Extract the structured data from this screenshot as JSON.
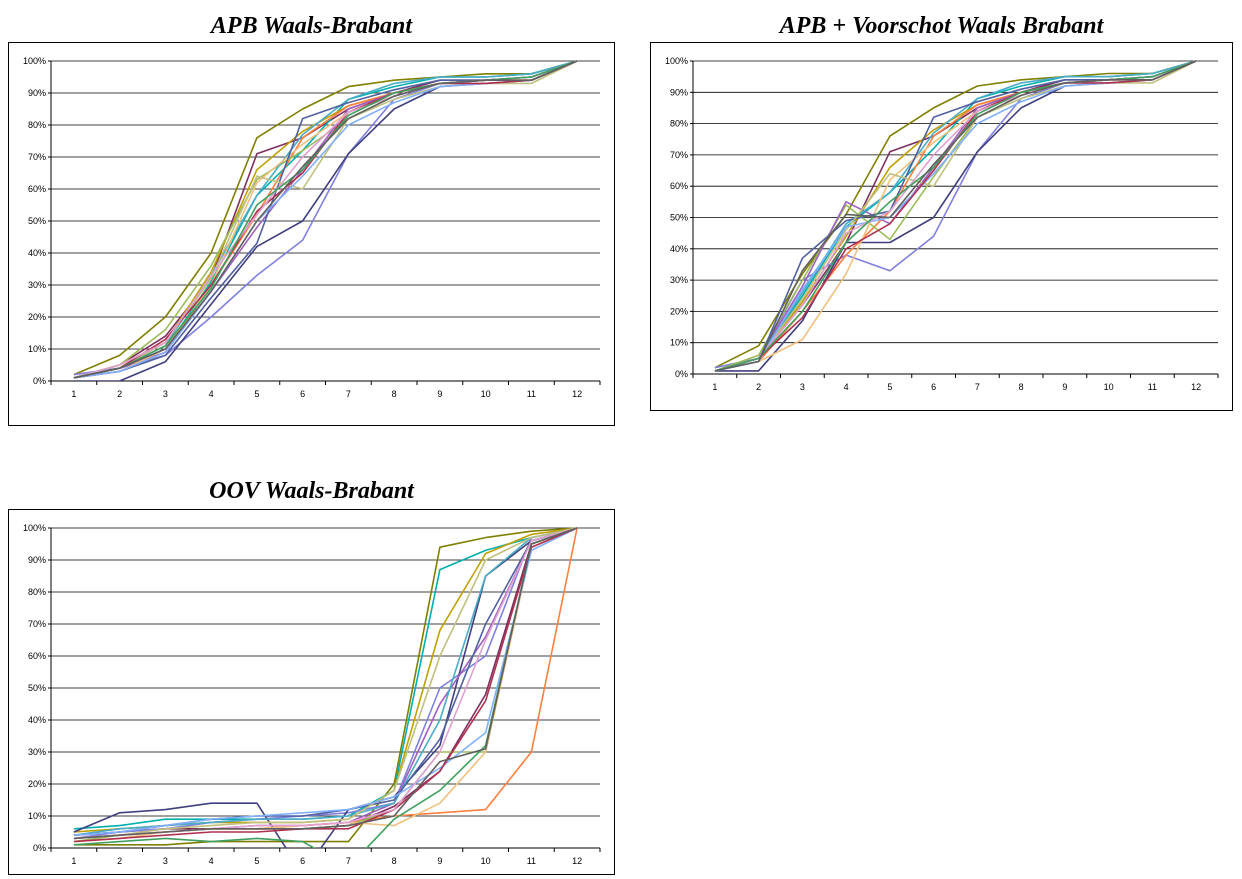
{
  "palette": [
    "#7f7f00",
    "#7f2f5f",
    "#00b0b0",
    "#c0a000",
    "#8080e0",
    "#40407f",
    "#ff8040",
    "#9bbb59",
    "#a060c0",
    "#4bacc6",
    "#f0c080",
    "#5060a0",
    "#c0c080",
    "#80b0ff",
    "#b03050",
    "#e0a0d0",
    "#40a060",
    "#606060"
  ],
  "charts": [
    {
      "title": "APB Waals-Brabant",
      "chart_data": {
        "type": "line",
        "title": "APB Waals-Brabant",
        "xlabel": "",
        "ylabel": "",
        "categories": [
          "1",
          "2",
          "3",
          "4",
          "5",
          "6",
          "7",
          "8",
          "9",
          "10",
          "11",
          "12"
        ],
        "y_ticks": [
          "0%",
          "10%",
          "20%",
          "30%",
          "40%",
          "50%",
          "60%",
          "70%",
          "80%",
          "90%",
          "100%"
        ],
        "ylim": [
          0,
          100
        ],
        "grid": true,
        "legend": "none",
        "series": [
          {
            "values": [
              2,
              8,
              20,
              40,
              76,
              85,
              92,
              94,
              95,
              96,
              96,
              100
            ],
            "color": "#7f7f00"
          },
          {
            "values": [
              1,
              5,
              14,
              32,
              71,
              76,
              85,
              90,
              94,
              94,
              95,
              100
            ],
            "color": "#7f2f5f"
          },
          {
            "values": [
              1,
              4,
              10,
              31,
              58,
              72,
              88,
              92,
              95,
              95,
              96,
              100
            ],
            "color": "#00b0b0"
          },
          {
            "values": [
              1,
              5,
              12,
              34,
              66,
              78,
              86,
              90,
              93,
              94,
              94,
              100
            ],
            "color": "#c0a000"
          },
          {
            "values": [
              2,
              4,
              8,
              20,
              33,
              44,
              71,
              88,
              93,
              94,
              95,
              100
            ],
            "color": "#8080e0"
          },
          {
            "values": [
              0,
              0,
              6,
              24,
              42,
              50,
              71,
              85,
              92,
              93,
              94,
              100
            ],
            "color": "#40407f"
          },
          {
            "values": [
              1,
              3,
              9,
              30,
              52,
              76,
              86,
              90,
              93,
              94,
              94,
              100
            ],
            "color": "#ff8040"
          },
          {
            "values": [
              1,
              5,
              16,
              36,
              63,
              72,
              82,
              89,
              93,
              94,
              95,
              100
            ],
            "color": "#9bbb59"
          },
          {
            "values": [
              1,
              4,
              9,
              28,
              48,
              66,
              85,
              90,
              93,
              94,
              95,
              100
            ],
            "color": "#a060c0"
          },
          {
            "values": [
              1,
              4,
              11,
              33,
              58,
              77,
              88,
              93,
              95,
              95,
              96,
              100
            ],
            "color": "#4bacc6"
          },
          {
            "values": [
              1,
              3,
              10,
              30,
              62,
              74,
              84,
              89,
              93,
              94,
              94,
              100
            ],
            "color": "#f0c080"
          },
          {
            "values": [
              1,
              3,
              8,
              26,
              43,
              82,
              87,
              91,
              94,
              94,
              95,
              100
            ],
            "color": "#5060a0"
          },
          {
            "values": [
              1,
              4,
              12,
              32,
              64,
              60,
              82,
              88,
              92,
              93,
              93,
              100
            ],
            "color": "#c0c080"
          },
          {
            "values": [
              1,
              3,
              9,
              28,
              50,
              64,
              80,
              87,
              92,
              93,
              94,
              100
            ],
            "color": "#80b0ff"
          },
          {
            "values": [
              1,
              4,
              13,
              30,
              53,
              65,
              84,
              90,
              93,
              93,
              94,
              100
            ],
            "color": "#b03050"
          },
          {
            "values": [
              1,
              5,
              12,
              33,
              52,
              70,
              84,
              89,
              93,
              94,
              95,
              100
            ],
            "color": "#e0a0d0"
          },
          {
            "values": [
              1,
              4,
              11,
              29,
              55,
              66,
              83,
              90,
              93,
              94,
              95,
              100
            ],
            "color": "#40a060"
          },
          {
            "values": [
              1,
              4,
              10,
              28,
              50,
              67,
              82,
              89,
              93,
              94,
              94,
              100
            ],
            "color": "#606060"
          }
        ]
      }
    },
    {
      "title": "APB + Voorschot Waals Brabant",
      "chart_data": {
        "type": "line",
        "title": "APB + Voorschot Waals Brabant",
        "xlabel": "",
        "ylabel": "",
        "categories": [
          "1",
          "2",
          "3",
          "4",
          "5",
          "6",
          "7",
          "8",
          "9",
          "10",
          "11",
          "12"
        ],
        "y_ticks": [
          "0%",
          "10%",
          "20%",
          "30%",
          "40%",
          "50%",
          "60%",
          "70%",
          "80%",
          "90%",
          "100%"
        ],
        "ylim": [
          0,
          100
        ],
        "grid": true,
        "legend": "none",
        "series": [
          {
            "values": [
              2,
              9,
              32,
              51,
              76,
              85,
              92,
              94,
              95,
              96,
              96,
              100
            ],
            "color": "#7f7f00"
          },
          {
            "values": [
              1,
              5,
              22,
              42,
              71,
              76,
              85,
              90,
              94,
              94,
              95,
              100
            ],
            "color": "#7f2f5f"
          },
          {
            "values": [
              1,
              5,
              25,
              47,
              58,
              72,
              88,
              92,
              95,
              95,
              96,
              100
            ],
            "color": "#00b0b0"
          },
          {
            "values": [
              1,
              5,
              23,
              44,
              66,
              78,
              86,
              90,
              93,
              94,
              94,
              100
            ],
            "color": "#c0a000"
          },
          {
            "values": [
              2,
              5,
              30,
              38,
              33,
              44,
              71,
              88,
              93,
              94,
              95,
              100
            ],
            "color": "#8080e0"
          },
          {
            "values": [
              1,
              1,
              17,
              42,
              42,
              50,
              71,
              85,
              92,
              93,
              94,
              100
            ],
            "color": "#40407f"
          },
          {
            "values": [
              1,
              4,
              20,
              38,
              52,
              76,
              86,
              90,
              93,
              94,
              94,
              100
            ],
            "color": "#ff8040"
          },
          {
            "values": [
              1,
              6,
              30,
              54,
              43,
              63,
              82,
              89,
              93,
              94,
              95,
              100
            ],
            "color": "#9bbb59"
          },
          {
            "values": [
              1,
              5,
              28,
              55,
              48,
              66,
              85,
              90,
              93,
              94,
              95,
              100
            ],
            "color": "#a060c0"
          },
          {
            "values": [
              1,
              5,
              26,
              48,
              58,
              77,
              88,
              93,
              95,
              95,
              96,
              100
            ],
            "color": "#4bacc6"
          },
          {
            "values": [
              1,
              4,
              11,
              32,
              62,
              74,
              84,
              89,
              93,
              94,
              94,
              100
            ],
            "color": "#f0c080"
          },
          {
            "values": [
              1,
              4,
              37,
              49,
              52,
              82,
              87,
              91,
              94,
              94,
              95,
              100
            ],
            "color": "#5060a0"
          },
          {
            "values": [
              1,
              5,
              24,
              46,
              64,
              60,
              82,
              88,
              92,
              93,
              93,
              100
            ],
            "color": "#c0c080"
          },
          {
            "values": [
              1,
              4,
              27,
              47,
              50,
              64,
              80,
              87,
              92,
              93,
              94,
              100
            ],
            "color": "#80b0ff"
          },
          {
            "values": [
              1,
              5,
              18,
              40,
              48,
              65,
              84,
              90,
              93,
              93,
              94,
              100
            ],
            "color": "#b03050"
          },
          {
            "values": [
              1,
              5,
              22,
              45,
              52,
              70,
              84,
              89,
              93,
              94,
              95,
              100
            ],
            "color": "#e0a0d0"
          },
          {
            "values": [
              1,
              5,
              20,
              42,
              55,
              66,
              83,
              90,
              93,
              94,
              95,
              100
            ],
            "color": "#40a060"
          },
          {
            "values": [
              1,
              4,
              33,
              51,
              50,
              67,
              82,
              89,
              93,
              94,
              94,
              100
            ],
            "color": "#606060"
          }
        ]
      }
    },
    {
      "title": "OOV Waals-Brabant",
      "chart_data": {
        "type": "line",
        "title": "OOV Waals-Brabant",
        "xlabel": "",
        "ylabel": "",
        "categories": [
          "1",
          "2",
          "3",
          "4",
          "5",
          "6",
          "7",
          "8",
          "9",
          "10",
          "11",
          "12"
        ],
        "y_ticks": [
          "0%",
          "10%",
          "20%",
          "30%",
          "40%",
          "50%",
          "60%",
          "70%",
          "80%",
          "90%",
          "100%"
        ],
        "ylim": [
          0,
          100
        ],
        "grid": true,
        "legend": "none",
        "series": [
          {
            "values": [
              1,
              1,
              1,
              2,
              2,
              2,
              2,
              20,
              94,
              97,
              99,
              100
            ],
            "color": "#7f7f00"
          },
          {
            "values": [
              4,
              5,
              6,
              6,
              6,
              6,
              7,
              13,
              24,
              48,
              95,
              100
            ],
            "color": "#7f2f5f"
          },
          {
            "values": [
              6,
              7,
              9,
              9,
              9,
              9,
              10,
              18,
              87,
              93,
              97,
              100
            ],
            "color": "#00b0b0"
          },
          {
            "values": [
              5,
              6,
              7,
              8,
              8,
              8,
              9,
              18,
              68,
              92,
              98,
              100
            ],
            "color": "#c0a000"
          },
          {
            "values": [
              3,
              5,
              6,
              8,
              9,
              10,
              11,
              14,
              50,
              60,
              97,
              100
            ],
            "color": "#8080e0"
          },
          {
            "values": [
              5,
              11,
              12,
              14,
              14,
              -8,
              12,
              16,
              32,
              85,
              96,
              100
            ],
            "color": "#40407f"
          },
          {
            "values": [
              3,
              4,
              5,
              6,
              6,
              7,
              8,
              10,
              11,
              12,
              30,
              100
            ],
            "color": "#ff8040"
          },
          {
            "values": [
              2,
              4,
              5,
              6,
              6,
              6,
              7,
              12,
              30,
              30,
              95,
              100
            ],
            "color": "#9bbb59"
          },
          {
            "values": [
              3,
              4,
              5,
              6,
              7,
              7,
              8,
              14,
              45,
              66,
              96,
              100
            ],
            "color": "#a060c0"
          },
          {
            "values": [
              4,
              6,
              7,
              8,
              9,
              9,
              10,
              14,
              40,
              85,
              97,
              100
            ],
            "color": "#4bacc6"
          },
          {
            "values": [
              2,
              3,
              5,
              6,
              6,
              7,
              8,
              7,
              14,
              30,
              94,
              100
            ],
            "color": "#f0c080"
          },
          {
            "values": [
              4,
              5,
              7,
              9,
              10,
              10,
              12,
              15,
              34,
              70,
              96,
              100
            ],
            "color": "#5060a0"
          },
          {
            "values": [
              3,
              4,
              6,
              7,
              8,
              8,
              9,
              18,
              60,
              90,
              97,
              100
            ],
            "color": "#c0c080"
          },
          {
            "values": [
              4,
              5,
              7,
              9,
              10,
              11,
              12,
              16,
              25,
              36,
              93,
              100
            ],
            "color": "#80b0ff"
          },
          {
            "values": [
              2,
              3,
              4,
              5,
              5,
              6,
              6,
              12,
              24,
              46,
              94,
              100
            ],
            "color": "#b03050"
          },
          {
            "values": [
              3,
              4,
              5,
              6,
              7,
              7,
              8,
              12,
              30,
              65,
              96,
              100
            ],
            "color": "#e0a0d0"
          },
          {
            "values": [
              1,
              2,
              3,
              2,
              3,
              2,
              -6,
              9,
              18,
              32,
              95,
              100
            ],
            "color": "#40a060"
          },
          {
            "values": [
              3,
              4,
              5,
              6,
              6,
              6,
              7,
              10,
              27,
              31,
              95,
              100
            ],
            "color": "#606060"
          }
        ]
      }
    }
  ]
}
